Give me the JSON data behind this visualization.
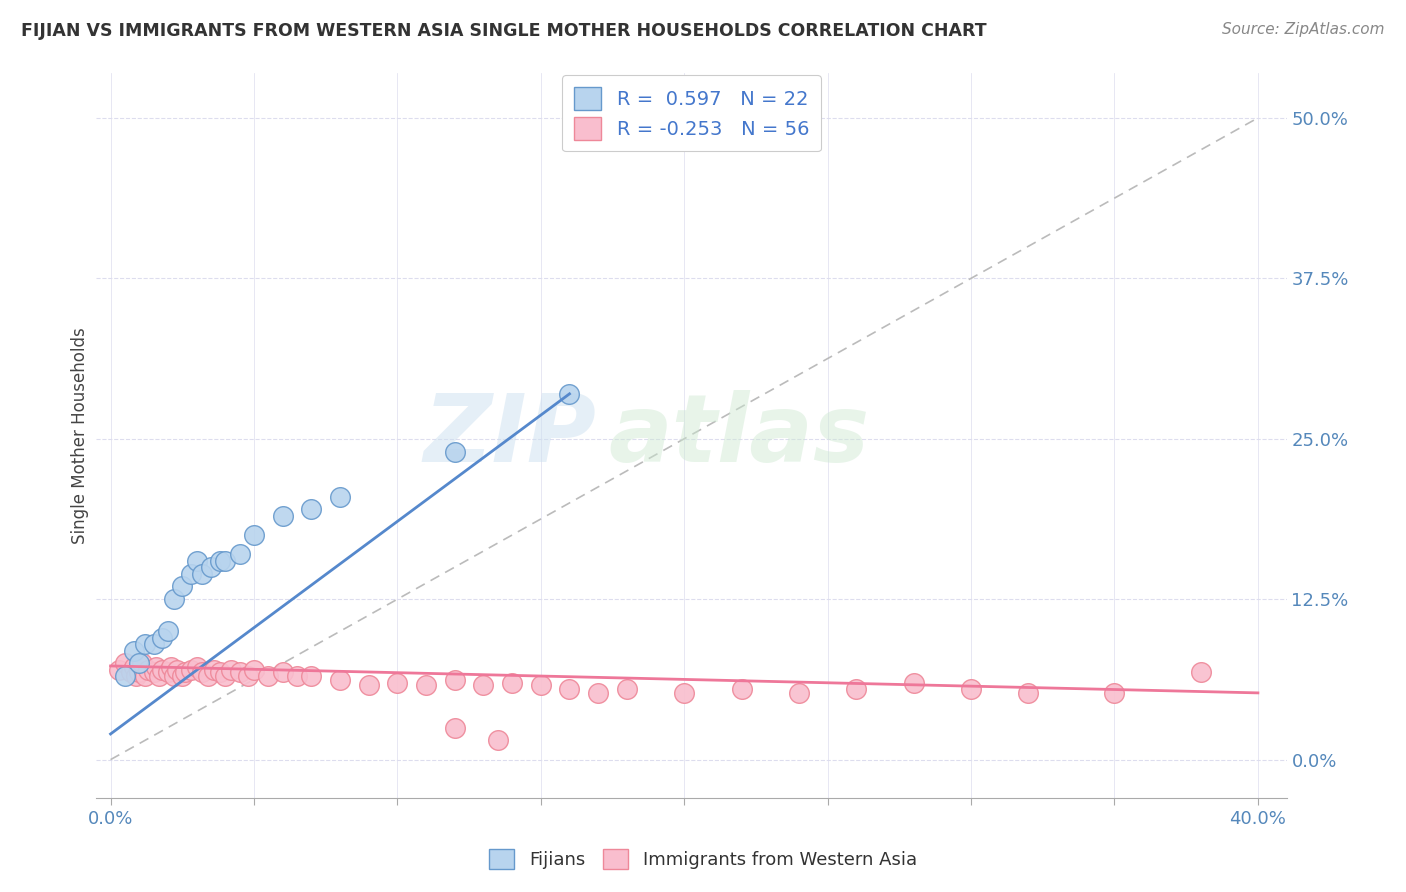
{
  "title": "FIJIAN VS IMMIGRANTS FROM WESTERN ASIA SINGLE MOTHER HOUSEHOLDS CORRELATION CHART",
  "source": "Source: ZipAtlas.com",
  "ylabel": "Single Mother Households",
  "ytick_labels": [
    "0.0%",
    "12.5%",
    "25.0%",
    "37.5%",
    "50.0%"
  ],
  "ytick_values": [
    0.0,
    0.125,
    0.25,
    0.375,
    0.5
  ],
  "xlim": [
    -0.005,
    0.41
  ],
  "ylim": [
    -0.03,
    0.535
  ],
  "fijian_scatter_x": [
    0.005,
    0.008,
    0.01,
    0.012,
    0.015,
    0.018,
    0.02,
    0.022,
    0.025,
    0.028,
    0.03,
    0.032,
    0.035,
    0.038,
    0.04,
    0.045,
    0.05,
    0.06,
    0.07,
    0.08,
    0.12,
    0.16
  ],
  "fijian_scatter_y": [
    0.065,
    0.085,
    0.075,
    0.09,
    0.09,
    0.095,
    0.1,
    0.125,
    0.135,
    0.145,
    0.155,
    0.145,
    0.15,
    0.155,
    0.155,
    0.16,
    0.175,
    0.19,
    0.195,
    0.205,
    0.24,
    0.285
  ],
  "western_asia_scatter_x": [
    0.003,
    0.005,
    0.007,
    0.008,
    0.009,
    0.01,
    0.011,
    0.012,
    0.013,
    0.015,
    0.016,
    0.017,
    0.018,
    0.02,
    0.021,
    0.022,
    0.023,
    0.025,
    0.026,
    0.028,
    0.03,
    0.032,
    0.034,
    0.036,
    0.038,
    0.04,
    0.042,
    0.045,
    0.048,
    0.05,
    0.055,
    0.06,
    0.065,
    0.07,
    0.08,
    0.09,
    0.1,
    0.11,
    0.12,
    0.13,
    0.14,
    0.15,
    0.16,
    0.17,
    0.18,
    0.2,
    0.22,
    0.24,
    0.26,
    0.28,
    0.3,
    0.32,
    0.35,
    0.38,
    0.12,
    0.135
  ],
  "western_asia_scatter_y": [
    0.07,
    0.075,
    0.068,
    0.072,
    0.065,
    0.068,
    0.075,
    0.065,
    0.07,
    0.068,
    0.072,
    0.065,
    0.07,
    0.068,
    0.072,
    0.065,
    0.07,
    0.065,
    0.068,
    0.07,
    0.072,
    0.068,
    0.065,
    0.07,
    0.068,
    0.065,
    0.07,
    0.068,
    0.065,
    0.07,
    0.065,
    0.068,
    0.065,
    0.065,
    0.062,
    0.058,
    0.06,
    0.058,
    0.062,
    0.058,
    0.06,
    0.058,
    0.055,
    0.052,
    0.055,
    0.052,
    0.055,
    0.052,
    0.055,
    0.06,
    0.055,
    0.052,
    0.052,
    0.068,
    0.025,
    0.015
  ],
  "fijian_line_x": [
    0.0,
    0.16
  ],
  "fijian_line_y": [
    0.02,
    0.285
  ],
  "western_asia_line_x": [
    0.0,
    0.4
  ],
  "western_asia_line_y": [
    0.073,
    0.052
  ],
  "ref_line_x": [
    0.0,
    0.4
  ],
  "ref_line_y": [
    0.0,
    0.5
  ],
  "watermark_zip": "ZIP",
  "watermark_atlas": "atlas",
  "background_color": "#ffffff"
}
